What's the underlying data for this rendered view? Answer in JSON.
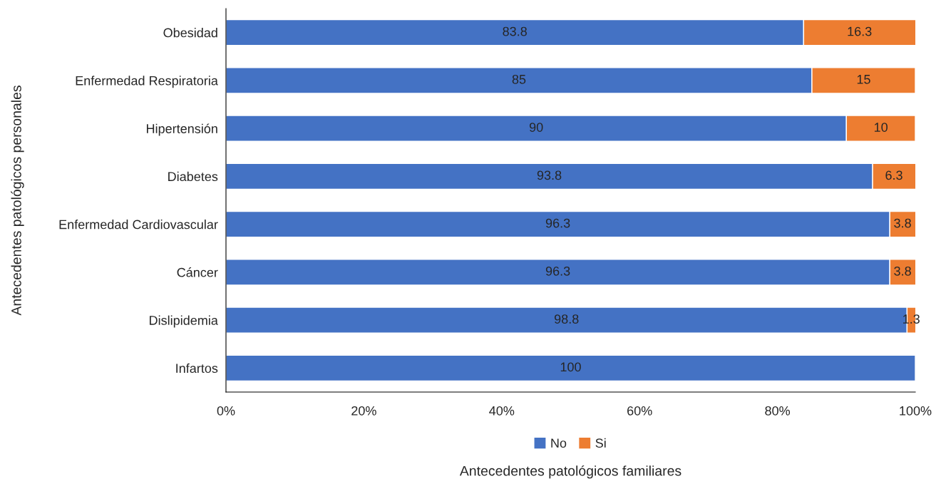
{
  "chart_data": {
    "type": "bar",
    "orientation": "horizontal",
    "stacked": true,
    "categories": [
      "Obesidad",
      "Enfermedad Respiratoria",
      "Hipertensión",
      "Diabetes",
      "Enfermedad Cardiovascular",
      "Cáncer",
      "Dislipidemia",
      "Infartos"
    ],
    "series": [
      {
        "name": "No",
        "color": "#4472c4",
        "values": [
          83.8,
          85,
          90,
          93.8,
          96.3,
          96.3,
          98.8,
          100
        ],
        "value_labels": [
          "83.8",
          "85",
          "90",
          "93.8",
          "96.3",
          "96.3",
          "98.8",
          "100"
        ]
      },
      {
        "name": "Si",
        "color": "#ed7d31",
        "values": [
          16.3,
          15,
          10,
          6.3,
          3.8,
          3.8,
          1.3,
          null
        ],
        "value_labels": [
          "16.3",
          "15",
          "10",
          "6.3",
          "3.8",
          "3.8",
          "1.3",
          null
        ]
      }
    ],
    "xlim": [
      0,
      100
    ],
    "xticks": [
      {
        "value": 0,
        "label": "0%"
      },
      {
        "value": 20,
        "label": "20%"
      },
      {
        "value": 40,
        "label": "40%"
      },
      {
        "value": 60,
        "label": "60%"
      },
      {
        "value": 80,
        "label": "80%"
      },
      {
        "value": 100,
        "label": "100%"
      }
    ],
    "xlabel": "Antecedentes patológicos familiares",
    "ylabel": "Antecedentes patológicos personales",
    "legend": "bottom",
    "grid": false
  }
}
